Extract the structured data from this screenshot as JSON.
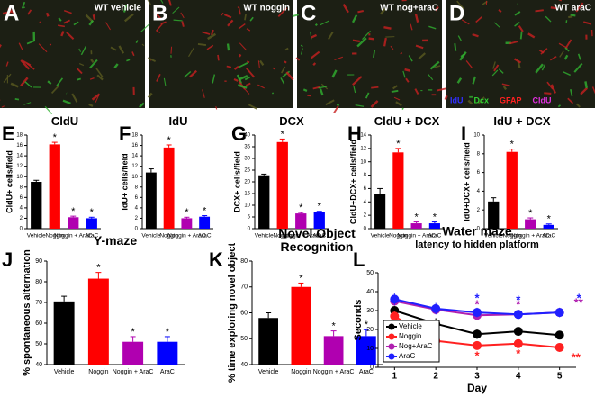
{
  "images": [
    {
      "letter": "A",
      "caption": "WT vehicle"
    },
    {
      "letter": "B",
      "caption": "WT noggin"
    },
    {
      "letter": "C",
      "caption": "WT nog+araC"
    },
    {
      "letter": "D",
      "caption": "WT araC"
    }
  ],
  "stain_legend": [
    {
      "text": "IdU",
      "color": "#3030ff"
    },
    {
      "text": "Dcx",
      "color": "#30d030"
    },
    {
      "text": "GFAP",
      "color": "#ff2020"
    },
    {
      "text": "CldU",
      "color": "#e030e0"
    }
  ],
  "chart_data": [
    {
      "type": "bar",
      "panel": "E",
      "title": "CldU",
      "ylabel": "CldU+ cells/field",
      "categories": [
        "Vehicle",
        "Noggin",
        "Noggin + AraC",
        "AraC"
      ],
      "values": [
        9,
        16.2,
        2.2,
        2
      ],
      "errors": [
        0.3,
        0.4,
        0.2,
        0.2
      ],
      "colors": [
        "#000000",
        "#ff0000",
        "#b000b0",
        "#0000ff"
      ],
      "significance": [
        null,
        "*",
        "*",
        "*"
      ],
      "ylim": [
        0,
        18
      ],
      "yticks": [
        0,
        2,
        4,
        6,
        8,
        10,
        12,
        14,
        16,
        18
      ]
    },
    {
      "type": "bar",
      "panel": "F",
      "title": "IdU",
      "ylabel": "IdU+ cells/field",
      "categories": [
        "Vehicle",
        "Noggin",
        "Noggin + AraC",
        "AraC"
      ],
      "values": [
        10.8,
        15.6,
        2,
        2.3
      ],
      "errors": [
        0.7,
        0.5,
        0.2,
        0.2
      ],
      "colors": [
        "#000000",
        "#ff0000",
        "#b000b0",
        "#0000ff"
      ],
      "significance": [
        null,
        "*",
        "*",
        "*"
      ],
      "ylim": [
        0,
        18
      ],
      "yticks": [
        0,
        2,
        4,
        6,
        8,
        10,
        12,
        14,
        16,
        18
      ]
    },
    {
      "type": "bar",
      "panel": "G",
      "title": "DCX",
      "ylabel": "DCX+ cells/field",
      "categories": [
        "Vehicle",
        "Noggin",
        "Noggin + AraC",
        "AraC"
      ],
      "values": [
        22.8,
        37,
        6.5,
        7
      ],
      "errors": [
        0.5,
        1.3,
        0.4,
        0.4
      ],
      "colors": [
        "#000000",
        "#ff0000",
        "#b000b0",
        "#0000ff"
      ],
      "significance": [
        null,
        "*",
        "*",
        "*"
      ],
      "ylim": [
        0,
        40
      ],
      "yticks": [
        0,
        5,
        10,
        15,
        20,
        25,
        30,
        35,
        40
      ]
    },
    {
      "type": "bar",
      "panel": "H",
      "title": "CldU + DCX",
      "ylabel": "CldU+DCX+ cells/field",
      "categories": [
        "Vehicle",
        "Noggin",
        "Noggin + AraC",
        "AraC"
      ],
      "values": [
        5.2,
        11.4,
        0.8,
        0.8
      ],
      "errors": [
        0.8,
        0.6,
        0.2,
        0.2
      ],
      "colors": [
        "#000000",
        "#ff0000",
        "#b000b0",
        "#0000ff"
      ],
      "significance": [
        null,
        "*",
        "*",
        "*"
      ],
      "ylim": [
        0,
        14
      ],
      "yticks": [
        0,
        2,
        4,
        6,
        8,
        10,
        12,
        14
      ]
    },
    {
      "type": "bar",
      "panel": "I",
      "title": "IdU + DCX",
      "ylabel": "IdU+DCX+ cells/field",
      "categories": [
        "Vehicle",
        "Noggin",
        "Noggin + AraC",
        "AraC"
      ],
      "values": [
        2.9,
        8.2,
        1,
        0.4
      ],
      "errors": [
        0.4,
        0.3,
        0.15,
        0.1
      ],
      "colors": [
        "#000000",
        "#ff0000",
        "#b000b0",
        "#0000ff"
      ],
      "significance": [
        null,
        "*",
        "*",
        "*"
      ],
      "ylim": [
        0,
        10
      ],
      "yticks": [
        0,
        2,
        4,
        6,
        8,
        10
      ]
    },
    {
      "type": "bar",
      "panel": "J",
      "title": "Y-maze",
      "ylabel": "% spontaneous alternation",
      "categories": [
        "Vehicle",
        "Noggin",
        "Noggin + AraC",
        "AraC"
      ],
      "values": [
        70.5,
        81.5,
        51,
        51
      ],
      "errors": [
        2.5,
        3,
        2.5,
        2.5
      ],
      "colors": [
        "#000000",
        "#ff0000",
        "#b000b0",
        "#0000ff"
      ],
      "significance": [
        null,
        "*",
        "*",
        "*"
      ],
      "ylim": [
        40,
        90
      ],
      "yticks": [
        40,
        50,
        60,
        70,
        80,
        90
      ]
    },
    {
      "type": "bar",
      "panel": "K",
      "title": "Novel Object Recognition",
      "ylabel": "% time exploring novel object",
      "categories": [
        "Vehicle",
        "Noggin",
        "Noggin + AraC",
        "AraC"
      ],
      "values": [
        58,
        70,
        51,
        51
      ],
      "errors": [
        2,
        1.5,
        2,
        2.5
      ],
      "colors": [
        "#000000",
        "#ff0000",
        "#b000b0",
        "#0000ff"
      ],
      "significance": [
        null,
        "*",
        "*",
        "*"
      ],
      "ylim": [
        40,
        80
      ],
      "yticks": [
        40,
        50,
        60,
        70,
        80
      ]
    },
    {
      "type": "line",
      "panel": "L",
      "title": "Water maze",
      "subtitle": "latency to hidden platform",
      "xlabel": "Day",
      "ylabel": "Seconds",
      "x": [
        1,
        2,
        3,
        4,
        5
      ],
      "xlim": [
        0.6,
        5.4
      ],
      "xticks": [
        1,
        2,
        3,
        4,
        5
      ],
      "ylim": [
        0,
        50
      ],
      "yticks": [
        0,
        10,
        20,
        30,
        40,
        50
      ],
      "legend": "lower left",
      "series": [
        {
          "name": "Vehicle",
          "color": "#000000",
          "values": [
            30,
            23,
            17.5,
            19,
            17
          ],
          "errors": [
            2,
            3,
            2.5,
            1.5,
            2
          ],
          "markers": [
            null,
            null,
            null,
            null,
            null
          ]
        },
        {
          "name": "Noggin",
          "color": "#ff2020",
          "values": [
            27,
            14,
            11.5,
            12.5,
            10.5
          ],
          "errors": [
            3,
            1.5,
            1.5,
            1.5,
            1
          ],
          "markers": [
            null,
            "*",
            "*",
            "*",
            "**"
          ]
        },
        {
          "name": "Nog+AraC",
          "color": "#b020b0",
          "values": [
            35,
            30.5,
            27.5,
            28,
            29
          ],
          "errors": [
            2.5,
            2.5,
            2.5,
            2,
            2
          ],
          "markers": [
            null,
            null,
            "*",
            "*",
            "**"
          ]
        },
        {
          "name": "AraC",
          "color": "#2020ff",
          "values": [
            36,
            31,
            29,
            28,
            29
          ],
          "errors": [
            3,
            3,
            2.5,
            2.5,
            2.5
          ],
          "markers": [
            null,
            null,
            "*",
            "*",
            "*"
          ]
        }
      ]
    }
  ]
}
